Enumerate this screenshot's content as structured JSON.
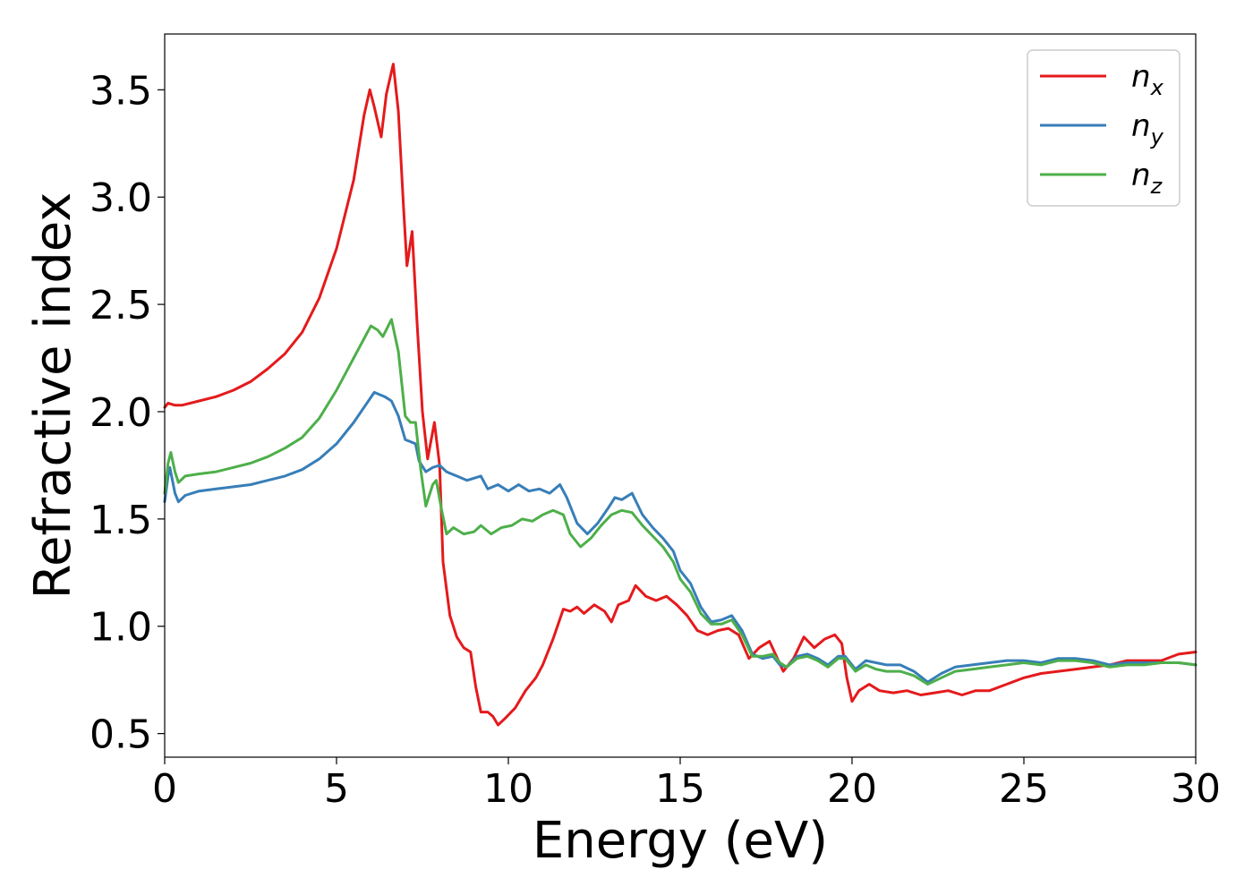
{
  "chart_data": {
    "type": "line",
    "xlabel": "Energy (eV)",
    "ylabel": "Refractive index",
    "xlim": [
      0,
      30
    ],
    "ylim": [
      0.39,
      3.76
    ],
    "x_ticks": [
      0,
      5,
      10,
      15,
      20,
      25,
      30
    ],
    "x_tick_labels": [
      "0",
      "5",
      "10",
      "15",
      "20",
      "25",
      "30"
    ],
    "y_ticks": [
      0.5,
      1.0,
      1.5,
      2.0,
      2.5,
      3.0,
      3.5
    ],
    "y_tick_labels": [
      "0.5",
      "1.0",
      "1.5",
      "2.0",
      "2.5",
      "3.0",
      "3.5"
    ],
    "grid": false,
    "legend_position": "top-right",
    "series": [
      {
        "name": "n",
        "subscript": "x",
        "color": "#e41a1c",
        "points": [
          [
            0,
            2.02
          ],
          [
            0.1,
            2.04
          ],
          [
            0.3,
            2.03
          ],
          [
            0.5,
            2.03
          ],
          [
            1,
            2.05
          ],
          [
            1.5,
            2.07
          ],
          [
            2,
            2.1
          ],
          [
            2.5,
            2.14
          ],
          [
            3,
            2.2
          ],
          [
            3.5,
            2.27
          ],
          [
            4,
            2.37
          ],
          [
            4.5,
            2.53
          ],
          [
            5,
            2.76
          ],
          [
            5.5,
            3.08
          ],
          [
            5.8,
            3.38
          ],
          [
            5.97,
            3.5
          ],
          [
            6.1,
            3.42
          ],
          [
            6.3,
            3.28
          ],
          [
            6.45,
            3.48
          ],
          [
            6.65,
            3.62
          ],
          [
            6.8,
            3.4
          ],
          [
            6.95,
            2.95
          ],
          [
            7.05,
            2.68
          ],
          [
            7.2,
            2.84
          ],
          [
            7.35,
            2.4
          ],
          [
            7.5,
            2.0
          ],
          [
            7.65,
            1.78
          ],
          [
            7.85,
            1.95
          ],
          [
            8.0,
            1.75
          ],
          [
            8.1,
            1.3
          ],
          [
            8.3,
            1.05
          ],
          [
            8.5,
            0.95
          ],
          [
            8.7,
            0.9
          ],
          [
            8.9,
            0.88
          ],
          [
            9.05,
            0.72
          ],
          [
            9.2,
            0.6
          ],
          [
            9.4,
            0.6
          ],
          [
            9.55,
            0.58
          ],
          [
            9.7,
            0.54
          ],
          [
            9.9,
            0.57
          ],
          [
            10.2,
            0.62
          ],
          [
            10.5,
            0.7
          ],
          [
            10.8,
            0.76
          ],
          [
            11.0,
            0.82
          ],
          [
            11.3,
            0.94
          ],
          [
            11.6,
            1.08
          ],
          [
            11.8,
            1.07
          ],
          [
            12.0,
            1.09
          ],
          [
            12.2,
            1.06
          ],
          [
            12.5,
            1.1
          ],
          [
            12.8,
            1.07
          ],
          [
            13.0,
            1.02
          ],
          [
            13.2,
            1.1
          ],
          [
            13.5,
            1.12
          ],
          [
            13.7,
            1.19
          ],
          [
            14.0,
            1.14
          ],
          [
            14.3,
            1.12
          ],
          [
            14.6,
            1.14
          ],
          [
            14.9,
            1.1
          ],
          [
            15.2,
            1.05
          ],
          [
            15.5,
            0.98
          ],
          [
            15.8,
            0.96
          ],
          [
            16.1,
            0.98
          ],
          [
            16.4,
            0.99
          ],
          [
            16.7,
            0.96
          ],
          [
            17.0,
            0.85
          ],
          [
            17.3,
            0.9
          ],
          [
            17.6,
            0.93
          ],
          [
            17.8,
            0.86
          ],
          [
            18.0,
            0.79
          ],
          [
            18.3,
            0.85
          ],
          [
            18.6,
            0.95
          ],
          [
            18.9,
            0.9
          ],
          [
            19.2,
            0.94
          ],
          [
            19.5,
            0.96
          ],
          [
            19.7,
            0.92
          ],
          [
            19.85,
            0.76
          ],
          [
            20.0,
            0.65
          ],
          [
            20.2,
            0.7
          ],
          [
            20.5,
            0.73
          ],
          [
            20.8,
            0.7
          ],
          [
            21.2,
            0.69
          ],
          [
            21.6,
            0.7
          ],
          [
            22.0,
            0.68
          ],
          [
            22.4,
            0.69
          ],
          [
            22.8,
            0.7
          ],
          [
            23.2,
            0.68
          ],
          [
            23.6,
            0.7
          ],
          [
            24.0,
            0.7
          ],
          [
            24.5,
            0.73
          ],
          [
            25.0,
            0.76
          ],
          [
            25.5,
            0.78
          ],
          [
            26.0,
            0.79
          ],
          [
            26.5,
            0.8
          ],
          [
            27.0,
            0.81
          ],
          [
            27.5,
            0.82
          ],
          [
            28.0,
            0.84
          ],
          [
            28.5,
            0.84
          ],
          [
            29.0,
            0.84
          ],
          [
            29.5,
            0.87
          ],
          [
            30.0,
            0.88
          ]
        ]
      },
      {
        "name": "n",
        "subscript": "y",
        "color": "#377eb8",
        "points": [
          [
            0,
            1.58
          ],
          [
            0.1,
            1.7
          ],
          [
            0.15,
            1.74
          ],
          [
            0.3,
            1.62
          ],
          [
            0.4,
            1.58
          ],
          [
            0.6,
            1.61
          ],
          [
            1,
            1.63
          ],
          [
            1.5,
            1.64
          ],
          [
            2,
            1.65
          ],
          [
            2.5,
            1.66
          ],
          [
            3,
            1.68
          ],
          [
            3.5,
            1.7
          ],
          [
            4,
            1.73
          ],
          [
            4.5,
            1.78
          ],
          [
            5,
            1.85
          ],
          [
            5.5,
            1.95
          ],
          [
            5.8,
            2.02
          ],
          [
            6.1,
            2.09
          ],
          [
            6.4,
            2.07
          ],
          [
            6.6,
            2.05
          ],
          [
            6.8,
            1.98
          ],
          [
            7.0,
            1.87
          ],
          [
            7.15,
            1.86
          ],
          [
            7.3,
            1.85
          ],
          [
            7.4,
            1.77
          ],
          [
            7.6,
            1.72
          ],
          [
            7.8,
            1.74
          ],
          [
            8.0,
            1.75
          ],
          [
            8.2,
            1.72
          ],
          [
            8.5,
            1.7
          ],
          [
            8.8,
            1.68
          ],
          [
            9.2,
            1.7
          ],
          [
            9.4,
            1.64
          ],
          [
            9.7,
            1.66
          ],
          [
            10.0,
            1.63
          ],
          [
            10.3,
            1.66
          ],
          [
            10.6,
            1.63
          ],
          [
            10.9,
            1.64
          ],
          [
            11.2,
            1.62
          ],
          [
            11.5,
            1.66
          ],
          [
            11.7,
            1.6
          ],
          [
            12.0,
            1.48
          ],
          [
            12.3,
            1.43
          ],
          [
            12.6,
            1.48
          ],
          [
            12.9,
            1.55
          ],
          [
            13.1,
            1.6
          ],
          [
            13.3,
            1.59
          ],
          [
            13.6,
            1.62
          ],
          [
            13.9,
            1.52
          ],
          [
            14.2,
            1.46
          ],
          [
            14.5,
            1.41
          ],
          [
            14.8,
            1.35
          ],
          [
            15.0,
            1.26
          ],
          [
            15.3,
            1.2
          ],
          [
            15.6,
            1.09
          ],
          [
            15.9,
            1.02
          ],
          [
            16.2,
            1.03
          ],
          [
            16.5,
            1.05
          ],
          [
            16.8,
            0.98
          ],
          [
            17.1,
            0.87
          ],
          [
            17.4,
            0.85
          ],
          [
            17.7,
            0.86
          ],
          [
            17.9,
            0.82
          ],
          [
            18.1,
            0.81
          ],
          [
            18.4,
            0.86
          ],
          [
            18.7,
            0.87
          ],
          [
            19.0,
            0.85
          ],
          [
            19.3,
            0.82
          ],
          [
            19.6,
            0.86
          ],
          [
            19.8,
            0.86
          ],
          [
            20.1,
            0.8
          ],
          [
            20.4,
            0.84
          ],
          [
            20.7,
            0.83
          ],
          [
            21.0,
            0.82
          ],
          [
            21.4,
            0.82
          ],
          [
            21.8,
            0.79
          ],
          [
            22.2,
            0.74
          ],
          [
            22.6,
            0.78
          ],
          [
            23.0,
            0.81
          ],
          [
            23.5,
            0.82
          ],
          [
            24.0,
            0.83
          ],
          [
            24.5,
            0.84
          ],
          [
            25.0,
            0.84
          ],
          [
            25.5,
            0.83
          ],
          [
            26.0,
            0.85
          ],
          [
            26.5,
            0.85
          ],
          [
            27.0,
            0.84
          ],
          [
            27.5,
            0.82
          ],
          [
            28.0,
            0.83
          ],
          [
            28.5,
            0.83
          ],
          [
            29.0,
            0.83
          ],
          [
            29.5,
            0.83
          ],
          [
            30.0,
            0.82
          ]
        ]
      },
      {
        "name": "n",
        "subscript": "z",
        "color": "#4daf4a",
        "points": [
          [
            0,
            1.62
          ],
          [
            0.1,
            1.76
          ],
          [
            0.18,
            1.81
          ],
          [
            0.3,
            1.72
          ],
          [
            0.4,
            1.67
          ],
          [
            0.6,
            1.7
          ],
          [
            1,
            1.71
          ],
          [
            1.5,
            1.72
          ],
          [
            2,
            1.74
          ],
          [
            2.5,
            1.76
          ],
          [
            3,
            1.79
          ],
          [
            3.5,
            1.83
          ],
          [
            4,
            1.88
          ],
          [
            4.5,
            1.97
          ],
          [
            5,
            2.1
          ],
          [
            5.5,
            2.25
          ],
          [
            5.8,
            2.34
          ],
          [
            6.0,
            2.4
          ],
          [
            6.2,
            2.38
          ],
          [
            6.35,
            2.35
          ],
          [
            6.6,
            2.43
          ],
          [
            6.8,
            2.28
          ],
          [
            7.0,
            1.98
          ],
          [
            7.15,
            1.95
          ],
          [
            7.3,
            1.95
          ],
          [
            7.45,
            1.73
          ],
          [
            7.6,
            1.56
          ],
          [
            7.8,
            1.66
          ],
          [
            7.9,
            1.68
          ],
          [
            8.05,
            1.55
          ],
          [
            8.2,
            1.43
          ],
          [
            8.4,
            1.46
          ],
          [
            8.7,
            1.43
          ],
          [
            9.0,
            1.44
          ],
          [
            9.2,
            1.47
          ],
          [
            9.5,
            1.43
          ],
          [
            9.8,
            1.46
          ],
          [
            10.1,
            1.47
          ],
          [
            10.4,
            1.5
          ],
          [
            10.7,
            1.49
          ],
          [
            11.0,
            1.52
          ],
          [
            11.3,
            1.54
          ],
          [
            11.6,
            1.52
          ],
          [
            11.8,
            1.43
          ],
          [
            12.1,
            1.37
          ],
          [
            12.4,
            1.41
          ],
          [
            12.7,
            1.47
          ],
          [
            13.0,
            1.52
          ],
          [
            13.3,
            1.54
          ],
          [
            13.6,
            1.53
          ],
          [
            13.9,
            1.47
          ],
          [
            14.2,
            1.42
          ],
          [
            14.5,
            1.37
          ],
          [
            14.8,
            1.3
          ],
          [
            15.0,
            1.22
          ],
          [
            15.3,
            1.16
          ],
          [
            15.6,
            1.06
          ],
          [
            15.9,
            1.01
          ],
          [
            16.2,
            1.01
          ],
          [
            16.5,
            1.03
          ],
          [
            16.8,
            0.96
          ],
          [
            17.1,
            0.86
          ],
          [
            17.4,
            0.86
          ],
          [
            17.7,
            0.87
          ],
          [
            17.9,
            0.83
          ],
          [
            18.1,
            0.81
          ],
          [
            18.4,
            0.85
          ],
          [
            18.7,
            0.86
          ],
          [
            19.0,
            0.84
          ],
          [
            19.3,
            0.81
          ],
          [
            19.6,
            0.85
          ],
          [
            19.8,
            0.85
          ],
          [
            20.1,
            0.79
          ],
          [
            20.4,
            0.82
          ],
          [
            20.7,
            0.8
          ],
          [
            21.0,
            0.79
          ],
          [
            21.4,
            0.79
          ],
          [
            21.8,
            0.77
          ],
          [
            22.2,
            0.73
          ],
          [
            22.6,
            0.76
          ],
          [
            23.0,
            0.79
          ],
          [
            23.5,
            0.8
          ],
          [
            24.0,
            0.81
          ],
          [
            24.5,
            0.82
          ],
          [
            25.0,
            0.83
          ],
          [
            25.5,
            0.82
          ],
          [
            26.0,
            0.84
          ],
          [
            26.5,
            0.84
          ],
          [
            27.0,
            0.83
          ],
          [
            27.5,
            0.81
          ],
          [
            28.0,
            0.82
          ],
          [
            28.5,
            0.82
          ],
          [
            29.0,
            0.83
          ],
          [
            29.5,
            0.83
          ],
          [
            30.0,
            0.82
          ]
        ]
      }
    ]
  }
}
